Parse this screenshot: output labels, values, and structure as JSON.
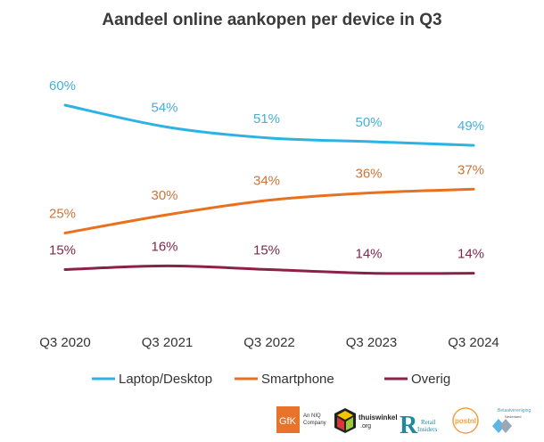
{
  "chart_data": {
    "type": "line",
    "title": "Aandeel online aankopen per device in Q3",
    "categories": [
      "Q3 2020",
      "Q3 2021",
      "Q3 2022",
      "Q3 2023",
      "Q3 2024"
    ],
    "series": [
      {
        "name": "Laptop/Desktop",
        "values": [
          60,
          54,
          51,
          50,
          49
        ],
        "labels": [
          "60%",
          "54%",
          "51%",
          "50%",
          "49%"
        ],
        "color": "#2db3e3",
        "label_color": "#4aaed6"
      },
      {
        "name": "Smartphone",
        "values": [
          25,
          30,
          34,
          36,
          37
        ],
        "labels": [
          "25%",
          "30%",
          "34%",
          "36%",
          "37%"
        ],
        "color": "#e8701e",
        "label_color": "#c9753a"
      },
      {
        "name": "Overig",
        "values": [
          15,
          16,
          15,
          14,
          14
        ],
        "labels": [
          "15%",
          "16%",
          "15%",
          "14%",
          "14%"
        ],
        "color": "#8b2049",
        "label_color": "#7a2a4a"
      }
    ],
    "legend_position": "bottom",
    "grid": false,
    "y_axis_visible": false
  },
  "logos": {
    "gfk": "GfK",
    "gfk_sub": "An NIQ Company",
    "thuiswinkel": "thuiswinkel",
    "thuiswinkel_sub": ".org",
    "retail": "Retail Insiders",
    "postnl": "postnl",
    "betaal": "Betaalvereniging Nederland"
  }
}
